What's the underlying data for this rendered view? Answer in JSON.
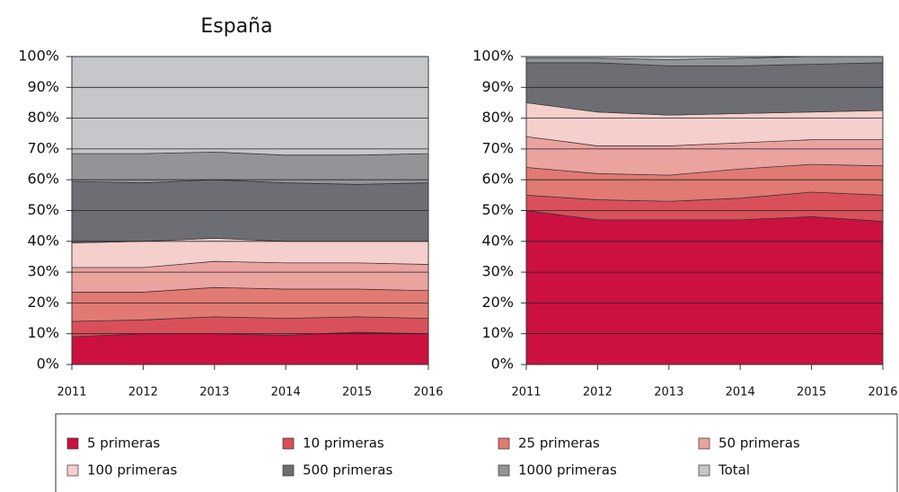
{
  "chart_data": [
    {
      "type": "stacked_area",
      "title": "España",
      "categories": [
        "2011",
        "2012",
        "2013",
        "2014",
        "2015",
        "2016"
      ],
      "ylim": [
        0,
        100
      ],
      "yticks": [
        {
          "value": 0,
          "label": "0%"
        },
        {
          "value": 10,
          "label": "10%"
        },
        {
          "value": 20,
          "label": "20%"
        },
        {
          "value": 30,
          "label": "30%"
        },
        {
          "value": 40,
          "label": "40%"
        },
        {
          "value": 50,
          "label": "50%"
        },
        {
          "value": 60,
          "label": "60%"
        },
        {
          "value": 70,
          "label": "70%"
        },
        {
          "value": 80,
          "label": "80%"
        },
        {
          "value": 90,
          "label": "90%"
        },
        {
          "value": 100,
          "label": "100%"
        }
      ],
      "grid": true,
      "series": [
        {
          "name": "5 primeras",
          "color": "#cc1141",
          "values": [
            9,
            10,
            10,
            9.5,
            10.5,
            10
          ]
        },
        {
          "name": "10 primeras",
          "color": "#d9505a",
          "values": [
            5,
            4.5,
            5.5,
            5.5,
            5,
            5
          ]
        },
        {
          "name": "25 primeras",
          "color": "#e17a73",
          "values": [
            9.5,
            9,
            9.5,
            9.5,
            9,
            9
          ]
        },
        {
          "name": "50 primeras",
          "color": "#eba3a0",
          "values": [
            8,
            8,
            8.5,
            8.5,
            8.5,
            8.5
          ]
        },
        {
          "name": "100 primeras",
          "color": "#f5cfcc",
          "values": [
            8,
            8.5,
            7.5,
            7,
            7,
            7.5
          ]
        },
        {
          "name": "500 primeras",
          "color": "#6d6e73",
          "values": [
            20,
            19,
            19,
            19,
            18.5,
            19
          ]
        },
        {
          "name": "1000 primeras",
          "color": "#939497",
          "values": [
            9,
            9.5,
            9,
            9,
            9.5,
            9.5
          ]
        },
        {
          "name": "Total",
          "color": "#c6c7ca",
          "values": [
            31.5,
            31.5,
            31,
            32,
            32,
            31.5
          ]
        }
      ]
    },
    {
      "type": "stacked_area",
      "categories": [
        "2011",
        "2012",
        "2013",
        "2014",
        "2015",
        "2016"
      ],
      "ylim": [
        0,
        100
      ],
      "yticks": [
        {
          "value": 0,
          "label": "0%"
        },
        {
          "value": 10,
          "label": "10%"
        },
        {
          "value": 20,
          "label": "20%"
        },
        {
          "value": 30,
          "label": "30%"
        },
        {
          "value": 40,
          "label": "40%"
        },
        {
          "value": 50,
          "label": "50%"
        },
        {
          "value": 60,
          "label": "60%"
        },
        {
          "value": 70,
          "label": "70%"
        },
        {
          "value": 80,
          "label": "80%"
        },
        {
          "value": 90,
          "label": "90%"
        },
        {
          "value": 100,
          "label": "100%"
        }
      ],
      "grid": true,
      "series": [
        {
          "color": "#cc1141",
          "values": [
            50,
            47,
            47,
            47,
            48,
            46.5
          ]
        },
        {
          "color": "#d9505a",
          "values": [
            5,
            6.5,
            6,
            7,
            8,
            8.5
          ]
        },
        {
          "color": "#e17a73",
          "values": [
            9,
            8.5,
            8.5,
            9.5,
            9,
            9.5
          ]
        },
        {
          "color": "#eba3a0",
          "values": [
            10,
            9,
            9.5,
            8.5,
            8,
            8.5
          ]
        },
        {
          "color": "#f5cfcc",
          "values": [
            11,
            11,
            10,
            9.5,
            9,
            9.5
          ]
        },
        {
          "color": "#6d6e73",
          "values": [
            13,
            16,
            16,
            15.5,
            15.5,
            15.5
          ]
        },
        {
          "color": "#939497",
          "values": [
            1.5,
            1.5,
            2,
            2.5,
            2.5,
            2
          ]
        },
        {
          "color": "#c6c7ca",
          "values": [
            0.5,
            0.5,
            1,
            0.5,
            0,
            0
          ]
        }
      ]
    }
  ]
}
